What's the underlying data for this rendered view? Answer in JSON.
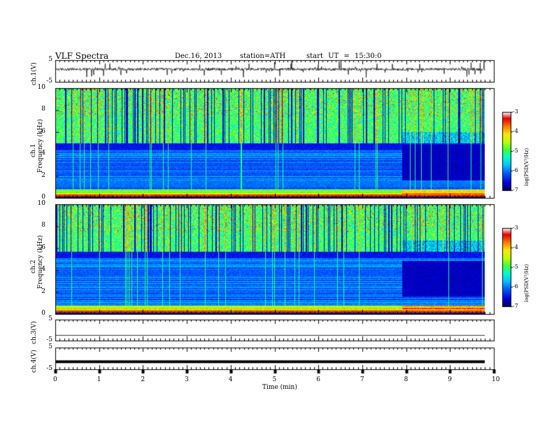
{
  "header": {
    "title": "VLF Spectra",
    "date": "Dec.16, 2013",
    "station": "station=ATH",
    "start": "start UT = 15:30:0"
  },
  "chart_data": [
    {
      "type": "line",
      "name": "ch1-waveform",
      "ylabel": "ch.1(V)",
      "ylim": [
        -5,
        5
      ],
      "yticks": [
        "5",
        "-5"
      ],
      "baseline": 0.8,
      "xlim": [
        0,
        10
      ]
    },
    {
      "type": "heatmap",
      "name": "ch1-spectrogram",
      "ylabel": "ch.1\nFrequency (kHz)",
      "ylabel_line1": "ch.1",
      "ylabel_line2": "Frequency (kHz)",
      "ylim": [
        0,
        10
      ],
      "yticks": [
        "0",
        "2",
        "4",
        "6",
        "8",
        "10"
      ],
      "xlim": [
        0,
        9.8
      ],
      "colorbar": {
        "label": "log(PSD(V²/Hz)",
        "range": [
          -7,
          -3
        ],
        "ticks": [
          "-3",
          "-4",
          "-5",
          "-6",
          "-7"
        ]
      },
      "noise_band_top_khz": 5.0,
      "quiet_start_min": 7.9,
      "quiet_ceiling_khz": 4.9
    },
    {
      "type": "heatmap",
      "name": "ch2-spectrogram",
      "ylabel_line1": "ch.2",
      "ylabel_line2": "Frequency (kHz)",
      "ylim": [
        0,
        10
      ],
      "yticks": [
        "0",
        "2",
        "4",
        "6",
        "8",
        "10"
      ],
      "xlim": [
        0,
        9.8
      ],
      "colorbar": {
        "label": "log(PSD(V²/Hz)",
        "range": [
          -7,
          -3
        ],
        "ticks": [
          "-3",
          "-4",
          "-5",
          "-6",
          "-7"
        ]
      },
      "noise_band_top_khz": 5.7,
      "quiet_start_min": 7.9,
      "quiet_ceiling_khz": 4.9
    },
    {
      "type": "line",
      "name": "ch3-waveform",
      "ylabel": "ch.3(V)",
      "ylim": [
        -5,
        5
      ],
      "yticks": [
        "5",
        "-5"
      ],
      "baseline": -2.5,
      "xlim": [
        0,
        9.8
      ]
    },
    {
      "type": "line",
      "name": "ch4-waveform",
      "ylabel": "ch.4(V)",
      "ylim": [
        -5,
        5
      ],
      "yticks": [
        "5",
        "-5"
      ],
      "baseline": -1.5,
      "xlim": [
        0,
        9.8
      ]
    }
  ],
  "xaxis": {
    "label": "Time (min)",
    "ticks": [
      "0",
      "1",
      "2",
      "3",
      "4",
      "5",
      "6",
      "7",
      "8",
      "9",
      "10"
    ],
    "range": [
      0,
      10
    ]
  },
  "colors": {
    "frame": "#000000",
    "colormap": [
      "#000066",
      "#0000ff",
      "#00a0ff",
      "#00ffff",
      "#00ff80",
      "#80ff00",
      "#ffff00",
      "#ff8000",
      "#ff0000",
      "#ffffff"
    ]
  }
}
